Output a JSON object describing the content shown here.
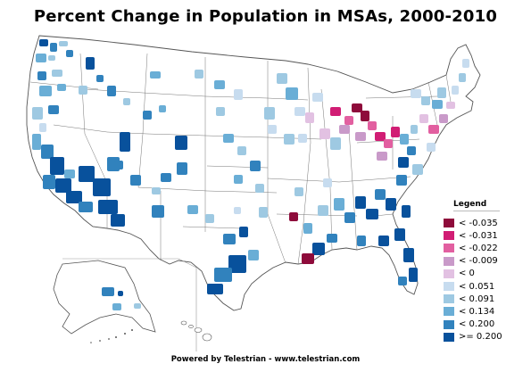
{
  "title": "Percent Change in Population in MSAs, 2000-2010",
  "legend": {
    "title": "Legend",
    "items": [
      {
        "label": "< -0.035",
        "color": "#8e0b3b"
      },
      {
        "label": "< -0.031",
        "color": "#d11d74"
      },
      {
        "label": "< -0.022",
        "color": "#e25fa0"
      },
      {
        "label": "< -0.009",
        "color": "#c99ac9"
      },
      {
        "label": "< 0",
        "color": "#e2c1e2"
      },
      {
        "label": "< 0.051",
        "color": "#c7dcef"
      },
      {
        "label": "< 0.091",
        "color": "#9ec9e2"
      },
      {
        "label": "< 0.134",
        "color": "#6aaed6"
      },
      {
        "label": "< 0.200",
        "color": "#3182bd"
      },
      {
        "label": ">= 0.200",
        "color": "#08519c"
      }
    ]
  },
  "footer": "Powered by Telestrian - www.telestrian.com"
}
